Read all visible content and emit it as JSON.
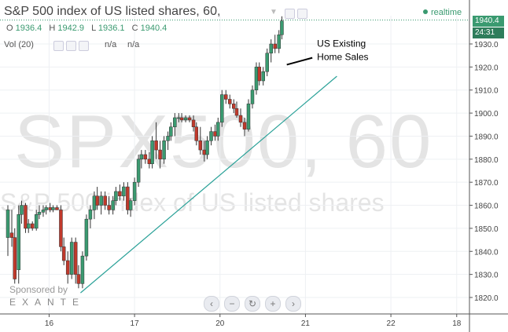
{
  "header": {
    "title": "S&P 500 index of US listed shares, 60,",
    "realtime_label": "realtime"
  },
  "ohlc": {
    "o_label": "O",
    "o_value": "1936.4",
    "h_label": "H",
    "h_value": "1942.9",
    "l_label": "L",
    "l_value": "1936.1",
    "c_label": "C",
    "c_value": "1940.4"
  },
  "volume": {
    "label": "Vol (20)",
    "value1": "n/a",
    "value2": "n/a"
  },
  "watermark": {
    "symbol": "SPX500, 60",
    "description": "S&P 500 index of US listed shares"
  },
  "sponsor": {
    "line1": "Sponsored by",
    "line2": "EXANTE"
  },
  "price_badge": {
    "price": "1940.4",
    "countdown": "24:31"
  },
  "colors": {
    "up": "#3a9a70",
    "down": "#c0392b",
    "trend": "#2aa198",
    "badge": "#3a9a70"
  },
  "controls": [
    "scroll-left-icon",
    "zoom-out-icon",
    "reset-icon",
    "zoom-in-icon",
    "scroll-right-icon"
  ],
  "chart_data": {
    "type": "candlestick",
    "y_ticks": [
      "1930.0",
      "1920.0",
      "1910.0",
      "1900.0",
      "1890.0",
      "1880.0",
      "1870.0",
      "1860.0",
      "1850.0",
      "1840.0",
      "1830.0",
      "1820.0"
    ],
    "y_tick_values": [
      1930,
      1920,
      1910,
      1900,
      1890,
      1880,
      1870,
      1860,
      1850,
      1840,
      1830,
      1820
    ],
    "ylim": [
      1816,
      1945
    ],
    "x_ticks": [
      "16",
      "17",
      "20",
      "21",
      "22",
      "18"
    ],
    "x_tick_positions": [
      5.2,
      13.9,
      22.6,
      31.3,
      40.0,
      46.7
    ],
    "x_range": [
      1,
      48
    ],
    "candles": [
      {
        "x": 1.0,
        "o": 1846,
        "h": 1860,
        "l": 1838,
        "c": 1858
      },
      {
        "x": 1.4,
        "o": 1848,
        "h": 1858,
        "l": 1842,
        "c": 1846
      },
      {
        "x": 1.7,
        "o": 1846,
        "h": 1850,
        "l": 1826,
        "c": 1828
      },
      {
        "x": 2.1,
        "o": 1832,
        "h": 1860,
        "l": 1826,
        "c": 1856
      },
      {
        "x": 2.4,
        "o": 1856,
        "h": 1862,
        "l": 1852,
        "c": 1860
      },
      {
        "x": 2.8,
        "o": 1860,
        "h": 1861,
        "l": 1848,
        "c": 1850
      },
      {
        "x": 3.1,
        "o": 1850,
        "h": 1854,
        "l": 1848,
        "c": 1852
      },
      {
        "x": 3.5,
        "o": 1852,
        "h": 1853,
        "l": 1849,
        "c": 1850
      },
      {
        "x": 3.9,
        "o": 1850,
        "h": 1858,
        "l": 1849,
        "c": 1856
      },
      {
        "x": 4.2,
        "o": 1856,
        "h": 1860,
        "l": 1854,
        "c": 1857
      },
      {
        "x": 4.6,
        "o": 1857,
        "h": 1860,
        "l": 1855,
        "c": 1858
      },
      {
        "x": 4.9,
        "o": 1858,
        "h": 1860,
        "l": 1856,
        "c": 1859
      },
      {
        "x": 5.3,
        "o": 1859,
        "h": 1861,
        "l": 1857,
        "c": 1858
      },
      {
        "x": 5.6,
        "o": 1858,
        "h": 1860,
        "l": 1857,
        "c": 1859
      },
      {
        "x": 6.0,
        "o": 1859,
        "h": 1860,
        "l": 1858,
        "c": 1858
      },
      {
        "x": 6.4,
        "o": 1858,
        "h": 1860,
        "l": 1840,
        "c": 1842
      },
      {
        "x": 6.7,
        "o": 1842,
        "h": 1846,
        "l": 1834,
        "c": 1836
      },
      {
        "x": 7.1,
        "o": 1836,
        "h": 1840,
        "l": 1826,
        "c": 1830
      },
      {
        "x": 7.5,
        "o": 1830,
        "h": 1846,
        "l": 1828,
        "c": 1844
      },
      {
        "x": 7.9,
        "o": 1844,
        "h": 1846,
        "l": 1826,
        "c": 1830
      },
      {
        "x": 8.2,
        "o": 1830,
        "h": 1834,
        "l": 1824,
        "c": 1826
      },
      {
        "x": 8.6,
        "o": 1826,
        "h": 1840,
        "l": 1824,
        "c": 1838
      },
      {
        "x": 9.0,
        "o": 1838,
        "h": 1856,
        "l": 1836,
        "c": 1854
      },
      {
        "x": 9.4,
        "o": 1854,
        "h": 1860,
        "l": 1850,
        "c": 1858
      },
      {
        "x": 9.8,
        "o": 1858,
        "h": 1866,
        "l": 1854,
        "c": 1864
      },
      {
        "x": 10.1,
        "o": 1864,
        "h": 1868,
        "l": 1858,
        "c": 1860
      },
      {
        "x": 10.5,
        "o": 1860,
        "h": 1866,
        "l": 1856,
        "c": 1864
      },
      {
        "x": 10.9,
        "o": 1864,
        "h": 1866,
        "l": 1858,
        "c": 1860
      },
      {
        "x": 11.3,
        "o": 1860,
        "h": 1864,
        "l": 1856,
        "c": 1858
      },
      {
        "x": 11.7,
        "o": 1858,
        "h": 1864,
        "l": 1856,
        "c": 1862
      },
      {
        "x": 12.0,
        "o": 1862,
        "h": 1868,
        "l": 1860,
        "c": 1866
      },
      {
        "x": 12.4,
        "o": 1866,
        "h": 1869,
        "l": 1862,
        "c": 1864
      },
      {
        "x": 12.8,
        "o": 1864,
        "h": 1870,
        "l": 1862,
        "c": 1868
      },
      {
        "x": 13.2,
        "o": 1868,
        "h": 1870,
        "l": 1856,
        "c": 1858
      },
      {
        "x": 13.5,
        "o": 1858,
        "h": 1863,
        "l": 1855,
        "c": 1862
      },
      {
        "x": 13.9,
        "o": 1862,
        "h": 1872,
        "l": 1860,
        "c": 1870
      },
      {
        "x": 14.3,
        "o": 1870,
        "h": 1882,
        "l": 1868,
        "c": 1880
      },
      {
        "x": 14.6,
        "o": 1880,
        "h": 1884,
        "l": 1876,
        "c": 1882
      },
      {
        "x": 15.0,
        "o": 1882,
        "h": 1884,
        "l": 1878,
        "c": 1880
      },
      {
        "x": 15.4,
        "o": 1880,
        "h": 1883,
        "l": 1876,
        "c": 1878
      },
      {
        "x": 15.7,
        "o": 1878,
        "h": 1890,
        "l": 1876,
        "c": 1888
      },
      {
        "x": 16.1,
        "o": 1888,
        "h": 1896,
        "l": 1880,
        "c": 1884
      },
      {
        "x": 16.5,
        "o": 1884,
        "h": 1888,
        "l": 1876,
        "c": 1880
      },
      {
        "x": 16.9,
        "o": 1880,
        "h": 1890,
        "l": 1878,
        "c": 1888
      },
      {
        "x": 17.3,
        "o": 1888,
        "h": 1892,
        "l": 1884,
        "c": 1890
      },
      {
        "x": 17.6,
        "o": 1890,
        "h": 1896,
        "l": 1888,
        "c": 1894
      },
      {
        "x": 18.0,
        "o": 1894,
        "h": 1900,
        "l": 1890,
        "c": 1898
      },
      {
        "x": 18.4,
        "o": 1898,
        "h": 1900,
        "l": 1896,
        "c": 1898
      },
      {
        "x": 18.7,
        "o": 1898,
        "h": 1900,
        "l": 1896,
        "c": 1897
      },
      {
        "x": 19.1,
        "o": 1897,
        "h": 1899,
        "l": 1896,
        "c": 1898
      },
      {
        "x": 19.5,
        "o": 1898,
        "h": 1899,
        "l": 1896,
        "c": 1897
      },
      {
        "x": 19.9,
        "o": 1897,
        "h": 1899,
        "l": 1892,
        "c": 1894
      },
      {
        "x": 20.2,
        "o": 1894,
        "h": 1896,
        "l": 1886,
        "c": 1888
      },
      {
        "x": 20.6,
        "o": 1888,
        "h": 1894,
        "l": 1882,
        "c": 1884
      },
      {
        "x": 21.0,
        "o": 1884,
        "h": 1888,
        "l": 1879,
        "c": 1882
      },
      {
        "x": 21.3,
        "o": 1882,
        "h": 1890,
        "l": 1880,
        "c": 1888
      },
      {
        "x": 21.7,
        "o": 1888,
        "h": 1894,
        "l": 1886,
        "c": 1892
      },
      {
        "x": 22.1,
        "o": 1892,
        "h": 1895,
        "l": 1888,
        "c": 1890
      },
      {
        "x": 22.4,
        "o": 1890,
        "h": 1898,
        "l": 1888,
        "c": 1896
      },
      {
        "x": 22.8,
        "o": 1896,
        "h": 1910,
        "l": 1894,
        "c": 1908
      },
      {
        "x": 23.2,
        "o": 1908,
        "h": 1910,
        "l": 1904,
        "c": 1906
      },
      {
        "x": 23.6,
        "o": 1906,
        "h": 1908,
        "l": 1902,
        "c": 1904
      },
      {
        "x": 24.0,
        "o": 1904,
        "h": 1906,
        "l": 1900,
        "c": 1902
      },
      {
        "x": 24.3,
        "o": 1902,
        "h": 1905,
        "l": 1898,
        "c": 1899
      },
      {
        "x": 24.7,
        "o": 1899,
        "h": 1902,
        "l": 1894,
        "c": 1896
      },
      {
        "x": 25.1,
        "o": 1896,
        "h": 1898,
        "l": 1890,
        "c": 1893
      },
      {
        "x": 25.5,
        "o": 1893,
        "h": 1906,
        "l": 1892,
        "c": 1904
      },
      {
        "x": 25.9,
        "o": 1904,
        "h": 1912,
        "l": 1902,
        "c": 1910
      },
      {
        "x": 26.3,
        "o": 1910,
        "h": 1922,
        "l": 1908,
        "c": 1920
      },
      {
        "x": 26.6,
        "o": 1920,
        "h": 1922,
        "l": 1912,
        "c": 1914
      },
      {
        "x": 27.0,
        "o": 1914,
        "h": 1920,
        "l": 1912,
        "c": 1918
      },
      {
        "x": 27.4,
        "o": 1918,
        "h": 1928,
        "l": 1916,
        "c": 1926
      },
      {
        "x": 27.8,
        "o": 1926,
        "h": 1932,
        "l": 1922,
        "c": 1930
      },
      {
        "x": 28.2,
        "o": 1930,
        "h": 1934,
        "l": 1926,
        "c": 1928
      },
      {
        "x": 28.6,
        "o": 1928,
        "h": 1936,
        "l": 1926,
        "c": 1934
      },
      {
        "x": 28.9,
        "o": 1934,
        "h": 1942,
        "l": 1932,
        "c": 1940
      }
    ],
    "trendline": {
      "x1": 8.4,
      "y1": 1822,
      "x2": 34.5,
      "y2": 1916
    },
    "last_price_line": 1940.4,
    "annotation": {
      "text_line1": "US Existing",
      "text_line2": "Home Sales",
      "arrow_from_x": 32.0,
      "arrow_from_y": 1924,
      "arrow_to_x": 29.4,
      "arrow_to_y": 1921
    }
  }
}
